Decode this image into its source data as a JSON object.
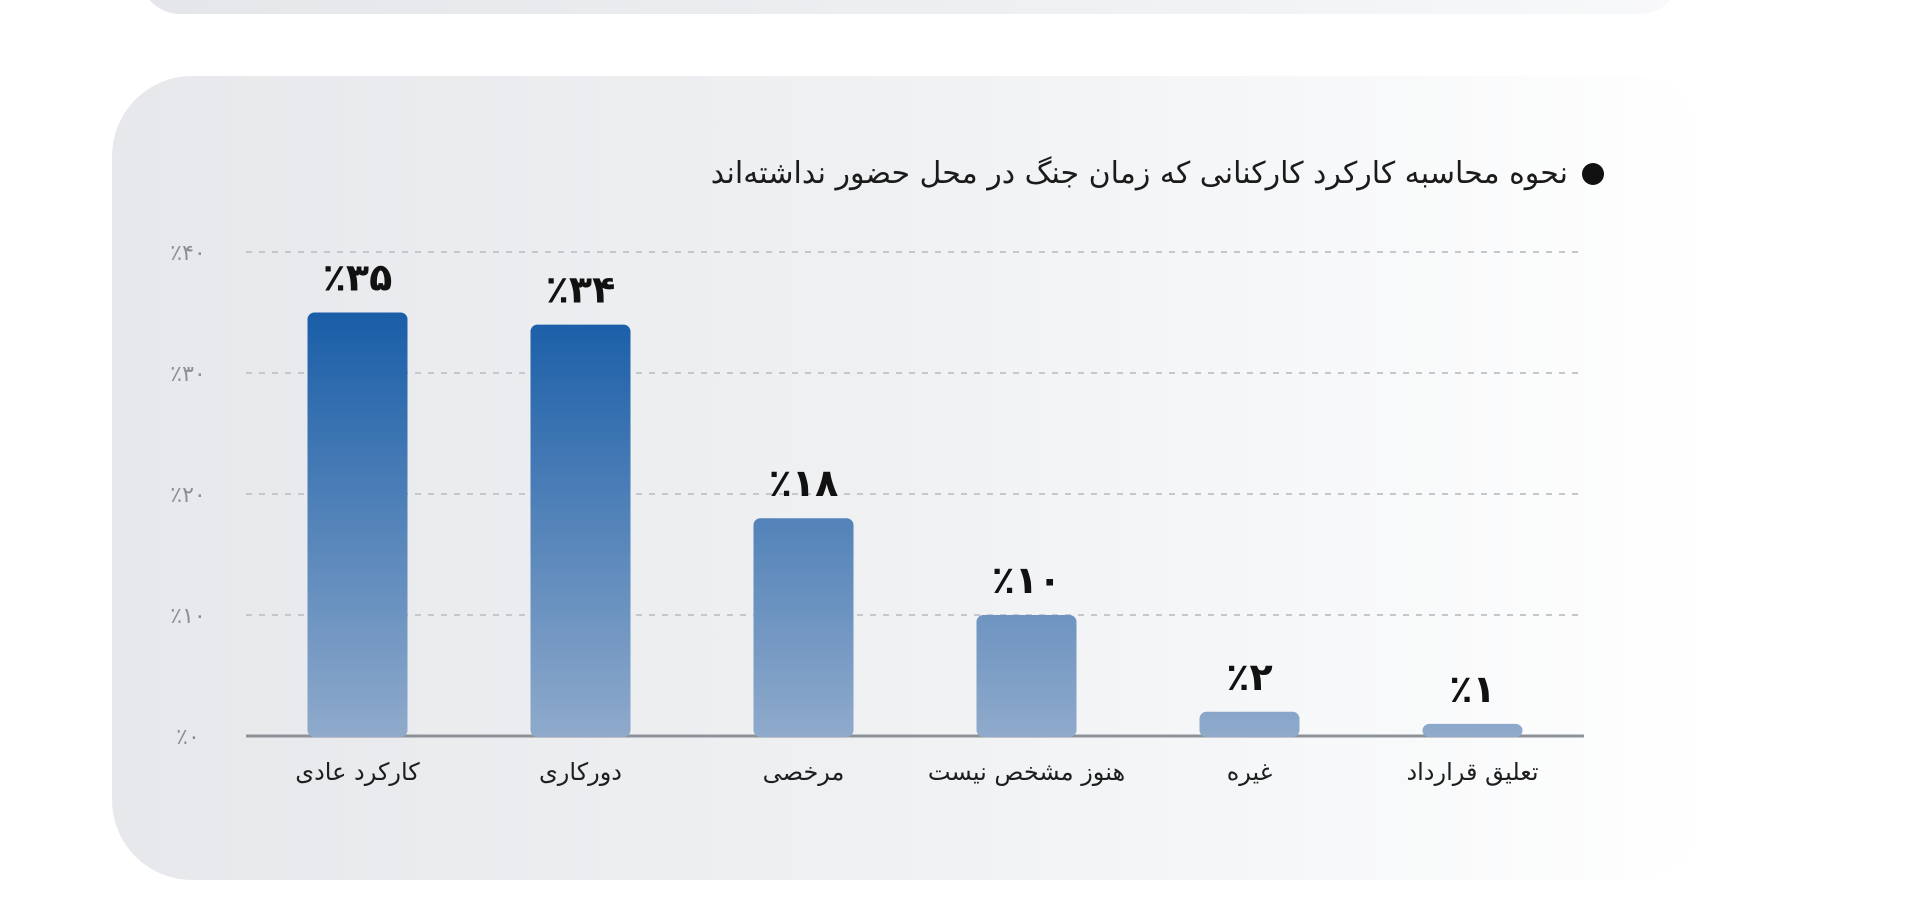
{
  "chart_data": {
    "type": "bar",
    "title": "نحوه محاسبه کارکرد کارکنانی که زمان جنگ در محل حضور نداشته‌اند",
    "categories": [
      "کارکرد عادی",
      "دورکاری",
      "مرخصی",
      "هنوز مشخص نیست",
      "غیره",
      "تعلیق قرارداد"
    ],
    "values": [
      35,
      34,
      18,
      10,
      2,
      1
    ],
    "value_labels": [
      "٪۳۵",
      "٪۳۴",
      "٪۱۸",
      "٪۱۰",
      "٪۲",
      "٪۱"
    ],
    "ylim": [
      0,
      40
    ],
    "yticks": [
      0,
      10,
      20,
      30,
      40
    ],
    "ytick_labels": [
      "٪۰",
      "٪۱۰",
      "٪۲۰",
      "٪۳۰",
      "٪۴۰"
    ],
    "grid": true,
    "xlabel": "",
    "ylabel": "",
    "colors": {
      "bar_top": "#1a5ea8",
      "bar_bottom": "#8faacb",
      "grid": "#c4c8cd",
      "axis": "#8d9299"
    }
  }
}
